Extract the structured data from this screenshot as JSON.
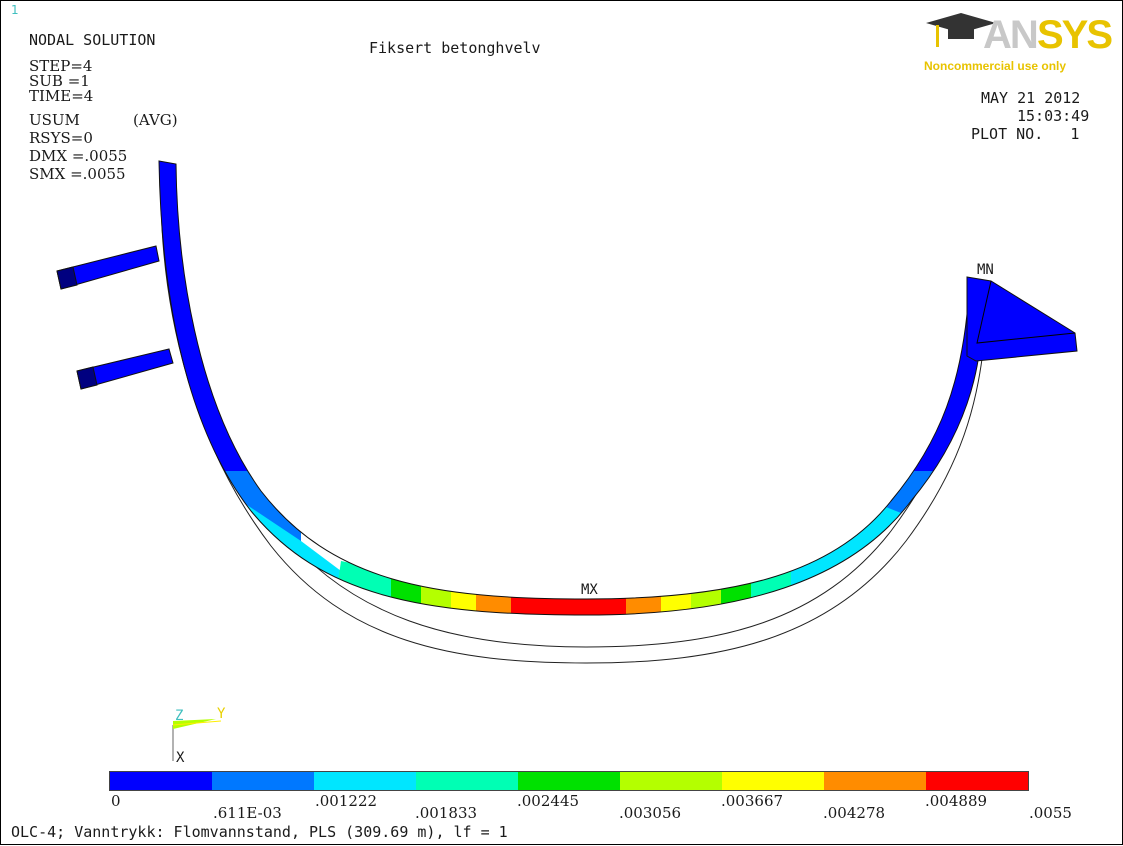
{
  "window_number": "1",
  "header": {
    "solution_type": "NODAL SOLUTION",
    "title": "Fiksert betonghvelv",
    "step": "STEP=4",
    "sub": "SUB =1",
    "time": "TIME=4",
    "usum": "USUM",
    "avg": "(AVG)",
    "rsys": "RSYS=0",
    "dmx": "DMX =.0055",
    "smx": "SMX =.0055"
  },
  "logo": {
    "brand_a": "AN",
    "brand_b": "SYS",
    "note": "Noncommercial use only"
  },
  "plot_info": {
    "date": "MAY 21 2012",
    "time": "15:03:49",
    "plot_no": "PLOT NO.   1"
  },
  "markers": {
    "mx": "MX",
    "mn": "MN"
  },
  "triad": {
    "z": "Z",
    "y": "Y",
    "x": "X"
  },
  "legend": {
    "colors": [
      "#0000ff",
      "#0078ff",
      "#00e6ff",
      "#00ffb4",
      "#00e100",
      "#b4ff00",
      "#ffff00",
      "#ff8c00",
      "#ff0000"
    ],
    "labels_low": [
      "0",
      ".001222",
      ".002445",
      ".003667",
      ".004889"
    ],
    "labels_high": [
      ".611E-03",
      ".001833",
      ".003056",
      ".004278",
      ".0055"
    ]
  },
  "footer": "OLC-4; Vanntrykk: Flomvannstand, PLS (309.69 m), lf = 1"
}
